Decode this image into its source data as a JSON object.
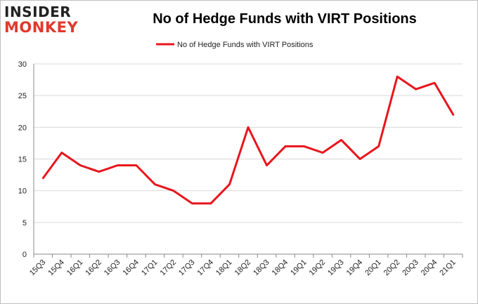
{
  "logo": {
    "line1": "INSIDER",
    "line2": "MONKEY"
  },
  "colors": {
    "series": "#e8151c",
    "grid": "#d9d9d9",
    "axis": "#888888",
    "logo_accent": "#e0392b"
  },
  "chart_data": {
    "type": "line",
    "title": "No of Hedge Funds with VIRT Positions",
    "xlabel": "",
    "ylabel": "",
    "ylim": [
      0,
      30
    ],
    "yticks": [
      0,
      5,
      10,
      15,
      20,
      25,
      30
    ],
    "grid": true,
    "legend_position": "top-center",
    "categories": [
      "15Q3",
      "15Q4",
      "16Q1",
      "16Q2",
      "16Q3",
      "16Q4",
      "17Q1",
      "17Q2",
      "17Q3",
      "17Q4",
      "18Q1",
      "18Q2",
      "18Q3",
      "18Q4",
      "19Q1",
      "19Q2",
      "19Q3",
      "19Q4",
      "20Q1",
      "20Q2",
      "20Q3",
      "20Q4",
      "21Q1"
    ],
    "series": [
      {
        "name": "No of Hedge Funds with VIRT Positions",
        "values": [
          12,
          16,
          14,
          13,
          14,
          14,
          11,
          10,
          8,
          8,
          11,
          20,
          14,
          17,
          17,
          16,
          18,
          15,
          17,
          28,
          26,
          27,
          22
        ]
      }
    ]
  }
}
